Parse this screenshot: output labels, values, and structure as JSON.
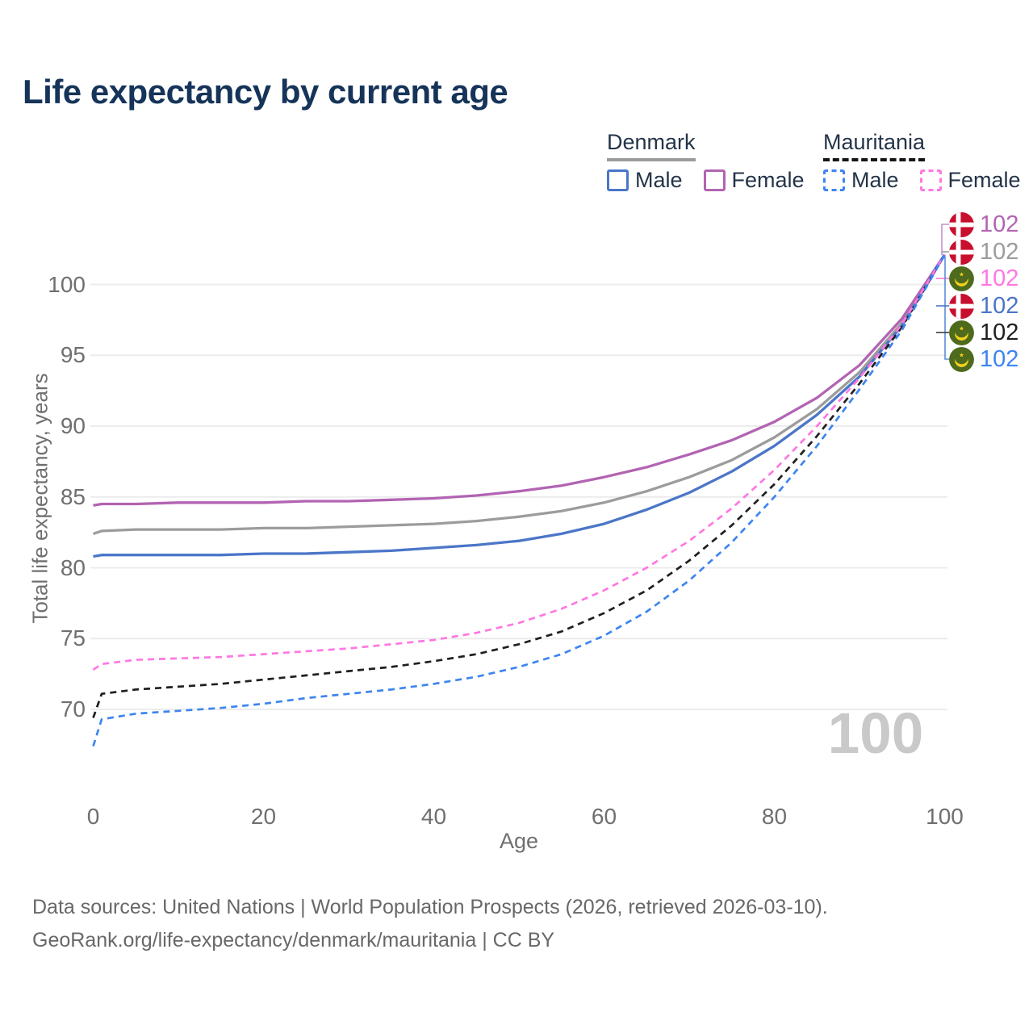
{
  "title": "Life expectancy by current age",
  "legend": {
    "groups": [
      {
        "country": "Denmark",
        "line_style": "solid",
        "underline_color": "#9b9b9b",
        "items": [
          {
            "label": "Male",
            "color": "#4b76c8",
            "dashed": false
          },
          {
            "label": "Female",
            "color": "#b264b2",
            "dashed": false
          }
        ]
      },
      {
        "country": "Mauritania",
        "line_style": "dashed",
        "underline_color": "#151515",
        "items": [
          {
            "label": "Male",
            "color": "#3d85f0",
            "dashed": true
          },
          {
            "label": "Female",
            "color": "#ff77e2",
            "dashed": true
          }
        ]
      }
    ]
  },
  "y_axis": {
    "title": "Total life expectancy, years",
    "ticks": [
      "100",
      "95",
      "90",
      "85",
      "80",
      "75",
      "70"
    ]
  },
  "x_axis": {
    "title": "Age",
    "ticks": [
      "0",
      "20",
      "40",
      "60",
      "80",
      "100"
    ]
  },
  "watermark_age": "100",
  "endpoint_labels": [
    {
      "flag": "denmark",
      "value": "102",
      "color": "#b264b2"
    },
    {
      "flag": "denmark",
      "value": "102",
      "color": "#9c9c9c"
    },
    {
      "flag": "mauritania",
      "value": "102",
      "color": "#ff77e2"
    },
    {
      "flag": "denmark",
      "value": "102",
      "color": "#4b76c8"
    },
    {
      "flag": "mauritania",
      "value": "102",
      "color": "#1f1f1f"
    },
    {
      "flag": "mauritania",
      "value": "102",
      "color": "#3d85f0"
    }
  ],
  "footer": {
    "line1": "Data sources: United Nations | World Population Prospects (2026, retrieved 2026-03-10).",
    "line2": "GeoRank.org/life-expectancy/denmark/mauritania | CC BY"
  },
  "chart_data": {
    "type": "line",
    "xlabel": "Age",
    "ylabel": "Total life expectancy, years",
    "xlim": [
      0,
      100
    ],
    "ylim": [
      62,
      103.5
    ],
    "grid": "horizontal",
    "legend_position": "top-right",
    "hover_age": 100,
    "ages": [
      0,
      1,
      5,
      10,
      15,
      20,
      25,
      30,
      35,
      40,
      45,
      50,
      55,
      60,
      65,
      70,
      75,
      80,
      85,
      90,
      95,
      100
    ],
    "series": [
      {
        "name": "Denmark Both sexes",
        "color": "#9c9c9c",
        "dashed": false,
        "values": [
          82.4,
          82.6,
          82.7,
          82.7,
          82.7,
          82.8,
          82.8,
          82.9,
          83.0,
          83.1,
          83.3,
          83.6,
          84.0,
          84.6,
          85.4,
          86.4,
          87.6,
          89.2,
          91.2,
          93.8,
          97.3,
          102.1
        ]
      },
      {
        "name": "Denmark Female",
        "color": "#b264b2",
        "dashed": false,
        "values": [
          84.4,
          84.5,
          84.5,
          84.6,
          84.6,
          84.6,
          84.7,
          84.7,
          84.8,
          84.9,
          85.1,
          85.4,
          85.8,
          86.4,
          87.1,
          88.0,
          89.0,
          90.3,
          92.0,
          94.3,
          97.6,
          102.1
        ]
      },
      {
        "name": "Denmark Male",
        "color": "#4b76c8",
        "dashed": false,
        "values": [
          80.8,
          80.9,
          80.9,
          80.9,
          80.9,
          81.0,
          81.0,
          81.1,
          81.2,
          81.4,
          81.6,
          81.9,
          82.4,
          83.1,
          84.1,
          85.3,
          86.8,
          88.6,
          90.8,
          93.5,
          97.1,
          102.1
        ]
      },
      {
        "name": "Mauritania Both sexes",
        "color": "#1f1f1f",
        "dashed": true,
        "values": [
          69.4,
          71.1,
          71.4,
          71.6,
          71.8,
          72.1,
          72.4,
          72.7,
          73.0,
          73.4,
          73.9,
          74.6,
          75.5,
          76.8,
          78.4,
          80.5,
          83.0,
          85.9,
          89.3,
          93.0,
          97.0,
          102.1
        ]
      },
      {
        "name": "Mauritania Female",
        "color": "#ff77e2",
        "dashed": true,
        "values": [
          72.8,
          73.2,
          73.5,
          73.6,
          73.7,
          73.9,
          74.1,
          74.3,
          74.6,
          74.9,
          75.4,
          76.1,
          77.1,
          78.4,
          80.0,
          81.9,
          84.2,
          86.9,
          90.0,
          93.4,
          97.2,
          102.1
        ]
      },
      {
        "name": "Mauritania Male",
        "color": "#3d85f0",
        "dashed": true,
        "values": [
          67.4,
          69.3,
          69.7,
          69.9,
          70.1,
          70.4,
          70.8,
          71.1,
          71.4,
          71.8,
          72.3,
          73.0,
          73.9,
          75.2,
          76.9,
          79.1,
          81.8,
          85.0,
          88.6,
          92.6,
          96.8,
          102.1
        ]
      }
    ]
  }
}
